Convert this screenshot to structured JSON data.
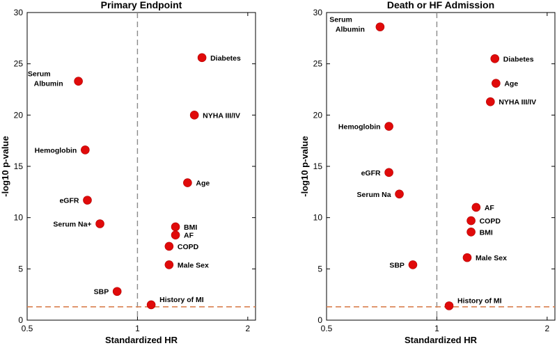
{
  "chart_data": [
    {
      "type": "scatter",
      "title": "Primary Endpoint",
      "xlabel": "Standardized HR",
      "ylabel": "-log10 p-value",
      "xscale": "log",
      "xlim": [
        0.5,
        2.1
      ],
      "ylim": [
        0,
        30
      ],
      "xticks": [
        0.5,
        1,
        2
      ],
      "xtick_labels": [
        "0.5",
        "1",
        "2"
      ],
      "yticks": [
        0,
        5,
        10,
        15,
        20,
        25,
        30
      ],
      "reference_x": 1,
      "reference_y": 1.3,
      "points": [
        {
          "label": "Diabetes",
          "hr": 1.5,
          "p": 25.6,
          "side": "right"
        },
        {
          "label": "Serum Albumin",
          "lines": [
            "Serum",
            "Albumin"
          ],
          "hr": 0.69,
          "p": 23.3,
          "side": "left"
        },
        {
          "label": "NYHA III/IV",
          "hr": 1.43,
          "p": 20.0,
          "side": "right"
        },
        {
          "label": "Hemoglobin",
          "hr": 0.72,
          "p": 16.6,
          "side": "left"
        },
        {
          "label": "Age",
          "hr": 1.37,
          "p": 13.4,
          "side": "right"
        },
        {
          "label": "eGFR",
          "hr": 0.73,
          "p": 11.7,
          "side": "left"
        },
        {
          "label": "Serum Na+",
          "hr": 0.79,
          "p": 9.4,
          "side": "left"
        },
        {
          "label": "BMI",
          "hr": 1.27,
          "p": 9.1,
          "side": "right"
        },
        {
          "label": "AF",
          "hr": 1.27,
          "p": 8.3,
          "side": "right"
        },
        {
          "label": "COPD",
          "hr": 1.22,
          "p": 7.2,
          "side": "right"
        },
        {
          "label": "Male Sex",
          "hr": 1.22,
          "p": 5.4,
          "side": "right"
        },
        {
          "label": "SBP",
          "hr": 0.88,
          "p": 2.8,
          "side": "left"
        },
        {
          "label": "History of MI",
          "hr": 1.09,
          "p": 1.5,
          "side": "right"
        }
      ]
    },
    {
      "type": "scatter",
      "title": "Death or HF Admission",
      "xlabel": "Standardized HR",
      "ylabel": "-log10 p-value",
      "xscale": "log",
      "xlim": [
        0.5,
        2.1
      ],
      "ylim": [
        0,
        30
      ],
      "xticks": [
        0.5,
        1,
        2
      ],
      "xtick_labels": [
        "0.5",
        "1",
        "2"
      ],
      "yticks": [
        0,
        5,
        10,
        15,
        20,
        25,
        30
      ],
      "reference_x": 1,
      "reference_y": 1.3,
      "points": [
        {
          "label": "Serum Albumin",
          "lines": [
            "Serum",
            "Albumin"
          ],
          "hr": 0.7,
          "p": 28.6,
          "side": "left"
        },
        {
          "label": "Diabetes",
          "hr": 1.44,
          "p": 25.5,
          "side": "right"
        },
        {
          "label": "Age",
          "hr": 1.45,
          "p": 23.1,
          "side": "right"
        },
        {
          "label": "NYHA III/IV",
          "hr": 1.4,
          "p": 21.3,
          "side": "right"
        },
        {
          "label": "Hemoglobin",
          "hr": 0.74,
          "p": 18.9,
          "side": "left"
        },
        {
          "label": "eGFR",
          "hr": 0.74,
          "p": 14.4,
          "side": "left"
        },
        {
          "label": "Serum Na",
          "hr": 0.79,
          "p": 12.3,
          "side": "left"
        },
        {
          "label": "AF",
          "hr": 1.28,
          "p": 11.0,
          "side": "right"
        },
        {
          "label": "COPD",
          "hr": 1.24,
          "p": 9.7,
          "side": "right"
        },
        {
          "label": "BMI",
          "hr": 1.24,
          "p": 8.6,
          "side": "right"
        },
        {
          "label": "Male Sex",
          "hr": 1.21,
          "p": 6.1,
          "side": "right"
        },
        {
          "label": "SBP",
          "hr": 0.86,
          "p": 5.4,
          "side": "left"
        },
        {
          "label": "History of MI",
          "hr": 1.08,
          "p": 1.4,
          "side": "right"
        }
      ]
    }
  ]
}
